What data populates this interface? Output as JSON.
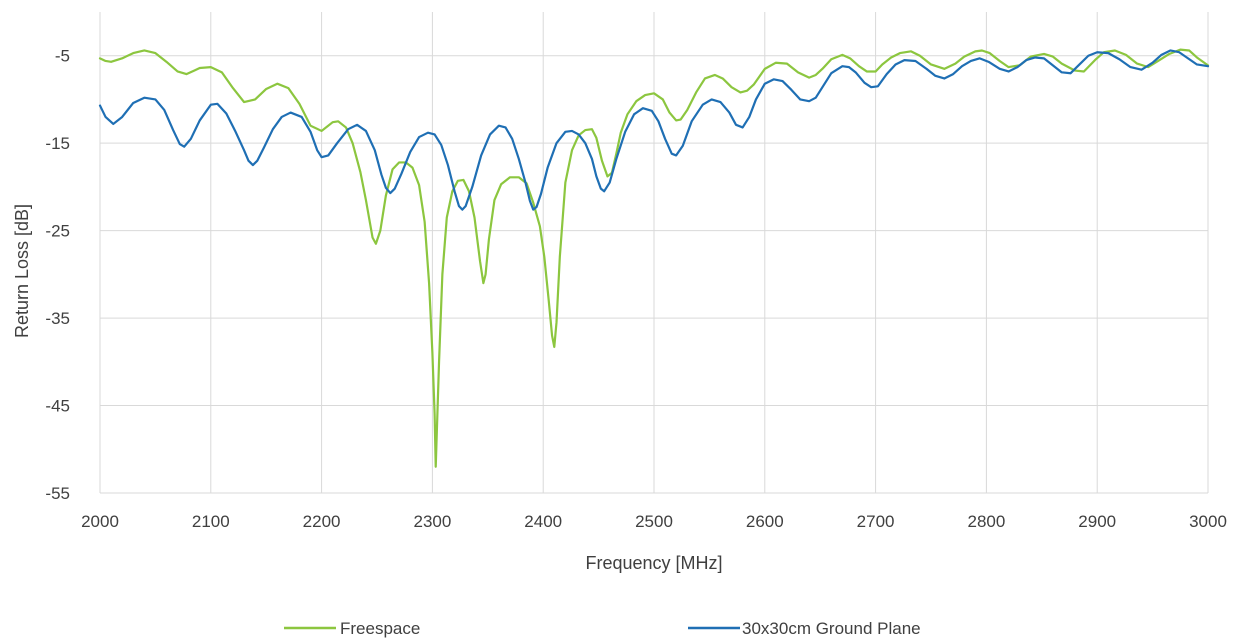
{
  "chart_data": {
    "type": "line",
    "title": "",
    "xlabel": "Frequency [MHz]",
    "ylabel": "Return Loss [dB]",
    "xlim": [
      2000,
      3000
    ],
    "ylim": [
      -55,
      0
    ],
    "x_ticks": [
      "2000",
      "2100",
      "2200",
      "2300",
      "2400",
      "2500",
      "2600",
      "2700",
      "2800",
      "2900",
      "3000"
    ],
    "y_ticks": [
      "-5",
      "-15",
      "-25",
      "-35",
      "-45",
      "-55"
    ],
    "grid": true,
    "legend_position": "bottom",
    "series": [
      {
        "name": "Freespace",
        "color": "#8cc63f",
        "x": [
          2000,
          2005,
          2010,
          2020,
          2030,
          2040,
          2050,
          2060,
          2070,
          2078,
          2085,
          2090,
          2100,
          2110,
          2120,
          2130,
          2140,
          2150,
          2160,
          2170,
          2180,
          2190,
          2200,
          2210,
          2215,
          2222,
          2228,
          2235,
          2240,
          2246,
          2249,
          2253,
          2258,
          2264,
          2270,
          2276,
          2282,
          2288,
          2293,
          2297,
          2300,
          2302,
          2303,
          2304,
          2306,
          2309,
          2313,
          2318,
          2323,
          2328,
          2333,
          2338,
          2343,
          2346,
          2348,
          2351,
          2356,
          2362,
          2370,
          2378,
          2385,
          2391,
          2397,
          2401,
          2405,
          2408,
          2410,
          2412,
          2415,
          2420,
          2426,
          2432,
          2438,
          2444,
          2448,
          2453,
          2458,
          2462,
          2466,
          2470,
          2476,
          2484,
          2492,
          2500,
          2508,
          2514,
          2520,
          2524,
          2530,
          2538,
          2546,
          2555,
          2562,
          2570,
          2578,
          2584,
          2590,
          2600,
          2610,
          2620,
          2630,
          2640,
          2646,
          2652,
          2660,
          2670,
          2677,
          2685,
          2692,
          2700,
          2706,
          2714,
          2722,
          2732,
          2740,
          2750,
          2762,
          2772,
          2780,
          2790,
          2796,
          2803,
          2812,
          2820,
          2830,
          2840,
          2852,
          2860,
          2868,
          2880,
          2888,
          2898,
          2906,
          2916,
          2926,
          2936,
          2946,
          2955,
          2965,
          2975,
          2983,
          2990,
          3000
        ],
        "y": [
          -5.3,
          -5.6,
          -5.7,
          -5.3,
          -4.7,
          -4.4,
          -4.7,
          -5.7,
          -6.8,
          -7.1,
          -6.7,
          -6.4,
          -6.3,
          -6.9,
          -8.7,
          -10.3,
          -10.0,
          -8.8,
          -8.2,
          -8.7,
          -10.5,
          -13.0,
          -13.6,
          -12.6,
          -12.5,
          -13.2,
          -15.0,
          -18.3,
          -21.5,
          -25.8,
          -26.5,
          -25.0,
          -21.0,
          -18.0,
          -17.2,
          -17.2,
          -17.8,
          -19.8,
          -24.0,
          -31.0,
          -39.0,
          -46.0,
          -52.0,
          -48.0,
          -40.0,
          -30.0,
          -23.5,
          -20.5,
          -19.3,
          -19.2,
          -20.5,
          -23.5,
          -28.5,
          -31.0,
          -30.0,
          -26.0,
          -21.5,
          -19.7,
          -18.9,
          -18.9,
          -19.6,
          -21.8,
          -24.5,
          -28.0,
          -33.0,
          -37.0,
          -38.3,
          -35.5,
          -28.0,
          -19.5,
          -15.8,
          -14.1,
          -13.5,
          -13.4,
          -14.4,
          -17.0,
          -18.8,
          -18.4,
          -16.2,
          -13.8,
          -11.7,
          -10.2,
          -9.5,
          -9.3,
          -10.0,
          -11.5,
          -12.4,
          -12.3,
          -11.2,
          -9.2,
          -7.6,
          -7.2,
          -7.6,
          -8.6,
          -9.2,
          -9.0,
          -8.3,
          -6.5,
          -5.8,
          -5.9,
          -6.9,
          -7.5,
          -7.2,
          -6.5,
          -5.4,
          -4.9,
          -5.3,
          -6.2,
          -6.8,
          -6.8,
          -6.0,
          -5.2,
          -4.7,
          -4.5,
          -5.0,
          -6.0,
          -6.5,
          -5.9,
          -5.1,
          -4.5,
          -4.4,
          -4.7,
          -5.6,
          -6.3,
          -6.1,
          -5.1,
          -4.8,
          -5.1,
          -5.9,
          -6.7,
          -6.8,
          -5.5,
          -4.6,
          -4.4,
          -4.9,
          -5.9,
          -6.3,
          -5.6,
          -4.8,
          -4.3,
          -4.4,
          -5.2,
          -6.1
        ]
      },
      {
        "name": "30x30cm Ground Plane",
        "color": "#1f6fb4",
        "x": [
          2000,
          2005,
          2012,
          2020,
          2030,
          2040,
          2050,
          2058,
          2066,
          2072,
          2076,
          2082,
          2090,
          2100,
          2106,
          2114,
          2122,
          2130,
          2134,
          2138,
          2142,
          2148,
          2156,
          2164,
          2172,
          2182,
          2190,
          2196,
          2200,
          2206,
          2214,
          2224,
          2232,
          2240,
          2248,
          2254,
          2258,
          2262,
          2266,
          2272,
          2280,
          2288,
          2296,
          2302,
          2308,
          2314,
          2320,
          2324,
          2327,
          2330,
          2336,
          2344,
          2352,
          2360,
          2366,
          2372,
          2378,
          2384,
          2388,
          2391,
          2394,
          2398,
          2404,
          2412,
          2420,
          2426,
          2432,
          2438,
          2444,
          2448,
          2452,
          2455,
          2460,
          2466,
          2474,
          2482,
          2490,
          2498,
          2504,
          2510,
          2516,
          2520,
          2526,
          2534,
          2544,
          2552,
          2560,
          2568,
          2574,
          2580,
          2586,
          2592,
          2600,
          2608,
          2616,
          2624,
          2632,
          2640,
          2646,
          2652,
          2660,
          2670,
          2676,
          2682,
          2690,
          2696,
          2702,
          2710,
          2718,
          2726,
          2736,
          2746,
          2754,
          2762,
          2770,
          2778,
          2786,
          2794,
          2802,
          2812,
          2820,
          2828,
          2836,
          2844,
          2852,
          2860,
          2868,
          2876,
          2884,
          2892,
          2900,
          2910,
          2920,
          2930,
          2940,
          2950,
          2958,
          2966,
          2974,
          2982,
          2990,
          3000
        ],
        "y": [
          -10.7,
          -12.0,
          -12.8,
          -12.0,
          -10.4,
          -9.8,
          -10.0,
          -11.2,
          -13.5,
          -15.1,
          -15.4,
          -14.5,
          -12.4,
          -10.6,
          -10.5,
          -11.6,
          -13.6,
          -15.8,
          -17.0,
          -17.5,
          -17.0,
          -15.5,
          -13.4,
          -12.0,
          -11.5,
          -12.0,
          -13.7,
          -15.8,
          -16.6,
          -16.4,
          -15.0,
          -13.4,
          -12.9,
          -13.6,
          -15.8,
          -18.6,
          -20.1,
          -20.7,
          -20.2,
          -18.5,
          -16.0,
          -14.3,
          -13.8,
          -14.0,
          -15.2,
          -17.5,
          -20.5,
          -22.2,
          -22.6,
          -22.2,
          -20.0,
          -16.4,
          -14.0,
          -13.0,
          -13.2,
          -14.5,
          -16.8,
          -19.5,
          -21.6,
          -22.6,
          -22.3,
          -20.8,
          -17.8,
          -15.0,
          -13.7,
          -13.6,
          -14.0,
          -15.0,
          -16.8,
          -18.8,
          -20.2,
          -20.5,
          -19.5,
          -16.8,
          -13.7,
          -11.7,
          -11.0,
          -11.3,
          -12.5,
          -14.5,
          -16.2,
          -16.4,
          -15.3,
          -12.5,
          -10.6,
          -10.0,
          -10.3,
          -11.5,
          -12.9,
          -13.2,
          -12.0,
          -10.0,
          -8.2,
          -7.7,
          -7.9,
          -8.9,
          -10.0,
          -10.2,
          -9.8,
          -8.6,
          -7.0,
          -6.2,
          -6.3,
          -6.9,
          -8.1,
          -8.6,
          -8.5,
          -7.1,
          -6.0,
          -5.5,
          -5.6,
          -6.5,
          -7.3,
          -7.6,
          -7.1,
          -6.2,
          -5.6,
          -5.3,
          -5.7,
          -6.5,
          -6.8,
          -6.3,
          -5.5,
          -5.2,
          -5.3,
          -6.1,
          -6.9,
          -7.0,
          -6.0,
          -5.0,
          -4.6,
          -4.7,
          -5.4,
          -6.3,
          -6.6,
          -5.8,
          -4.9,
          -4.4,
          -4.6,
          -5.3,
          -6.0,
          -6.2
        ]
      }
    ]
  }
}
